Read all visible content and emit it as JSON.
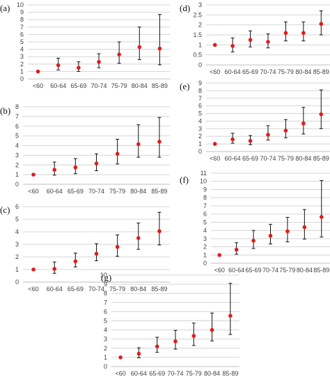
{
  "chart_data": [
    {
      "panel": "(a)",
      "type": "scatter",
      "categories": [
        "<60",
        "60-64",
        "65-69",
        "70-74",
        "75-79",
        "80-84",
        "85-89"
      ],
      "ylim": [
        0,
        10
      ],
      "yticks": [
        0,
        1,
        2,
        3,
        4,
        5,
        6,
        7,
        8,
        9,
        10
      ],
      "grid": true,
      "values": [
        1.0,
        1.85,
        1.5,
        2.3,
        3.3,
        4.3,
        4.1
      ],
      "lower": [
        1.0,
        1.2,
        1.0,
        1.5,
        2.1,
        2.6,
        1.9
      ],
      "upper": [
        1.0,
        2.8,
        2.3,
        3.4,
        5.0,
        7.0,
        8.7
      ]
    },
    {
      "panel": "(b)",
      "type": "scatter",
      "categories": [
        "<60",
        "60-64",
        "65-69",
        "70-74",
        "75-79",
        "80-84",
        "85-89"
      ],
      "ylim": [
        0,
        8
      ],
      "yticks": [
        0,
        1,
        2,
        3,
        4,
        5,
        6,
        7,
        8
      ],
      "grid": true,
      "values": [
        1.0,
        1.5,
        1.75,
        2.15,
        3.15,
        4.15,
        4.4
      ],
      "lower": [
        1.0,
        0.95,
        1.1,
        1.4,
        2.1,
        2.8,
        2.8
      ],
      "upper": [
        1.0,
        2.3,
        2.65,
        3.15,
        4.65,
        6.15,
        6.9
      ]
    },
    {
      "panel": "(c)",
      "type": "scatter",
      "categories": [
        "<60",
        "60-64",
        "65-69",
        "70-74",
        "75-79",
        "80-84",
        "85-89"
      ],
      "ylim": [
        0,
        6
      ],
      "yticks": [
        0,
        1,
        2,
        3,
        4,
        5,
        6
      ],
      "grid": true,
      "values": [
        1.0,
        1.05,
        1.65,
        2.25,
        2.8,
        3.5,
        4.05
      ],
      "lower": [
        1.0,
        0.7,
        1.2,
        1.7,
        2.05,
        2.6,
        2.95
      ],
      "upper": [
        1.0,
        1.6,
        2.3,
        3.05,
        3.75,
        4.7,
        5.55
      ]
    },
    {
      "panel": "(d)",
      "type": "scatter",
      "categories": [
        "<60",
        "60-64",
        "65-69",
        "70-74",
        "75-79",
        "80-84",
        "85-89"
      ],
      "ylim": [
        0,
        3
      ],
      "yticks": [
        0,
        0.5,
        1,
        1.5,
        2,
        2.5,
        3
      ],
      "ytick_labels": [
        "0",
        "0.5",
        "1",
        "1.5",
        "2",
        "2.5",
        "3"
      ],
      "grid": true,
      "values": [
        1.0,
        0.95,
        1.25,
        1.15,
        1.6,
        1.6,
        2.05
      ],
      "lower": [
        1.0,
        0.65,
        0.9,
        0.85,
        1.2,
        1.2,
        1.5
      ],
      "upper": [
        1.0,
        1.35,
        1.7,
        1.55,
        2.15,
        2.15,
        2.7
      ]
    },
    {
      "panel": "(e)",
      "type": "scatter",
      "categories": [
        "<60",
        "60-64",
        "65-69",
        "70-74",
        "75-79",
        "80-84",
        "85-89"
      ],
      "ylim": [
        0,
        9
      ],
      "yticks": [
        0,
        1,
        2,
        3,
        4,
        5,
        6,
        7,
        8,
        9
      ],
      "grid": true,
      "values": [
        1.0,
        1.6,
        1.4,
        2.2,
        2.75,
        3.7,
        4.9
      ],
      "lower": [
        1.0,
        1.1,
        0.9,
        1.5,
        1.8,
        2.3,
        3.0
      ],
      "upper": [
        1.0,
        2.4,
        2.1,
        3.4,
        4.2,
        5.8,
        8.1
      ]
    },
    {
      "panel": "(f)",
      "type": "scatter",
      "categories": [
        "<60",
        "60-64",
        "65-69",
        "70-74",
        "75-79",
        "80-84",
        "85-89"
      ],
      "ylim": [
        0,
        11
      ],
      "yticks": [
        0,
        1,
        2,
        3,
        4,
        5,
        6,
        7,
        8,
        9,
        10,
        11
      ],
      "grid": true,
      "values": [
        1.0,
        1.65,
        2.75,
        3.35,
        3.9,
        4.4,
        5.65
      ],
      "lower": [
        1.0,
        1.1,
        1.8,
        2.35,
        2.6,
        2.95,
        3.2
      ],
      "upper": [
        1.0,
        2.5,
        4.0,
        4.75,
        5.6,
        6.55,
        10.1
      ]
    },
    {
      "panel": "(g)",
      "type": "scatter",
      "categories": [
        "<60",
        "60-64",
        "65-69",
        "70-74",
        "75-79",
        "80-84",
        "85-89"
      ],
      "ylim": [
        0,
        10
      ],
      "yticks": [
        0,
        1,
        2,
        3,
        4,
        5,
        6,
        7,
        8,
        9,
        10
      ],
      "grid": true,
      "values": [
        1.0,
        1.4,
        2.2,
        2.75,
        3.35,
        4.0,
        5.55
      ],
      "lower": [
        1.0,
        0.95,
        1.55,
        1.9,
        2.3,
        2.8,
        3.5
      ],
      "upper": [
        1.0,
        2.05,
        3.2,
        3.95,
        4.75,
        5.85,
        9.1
      ]
    }
  ],
  "colors": {
    "point": "#e31a1c",
    "error_bar": "#111111",
    "grid": "#d4d4d4"
  }
}
